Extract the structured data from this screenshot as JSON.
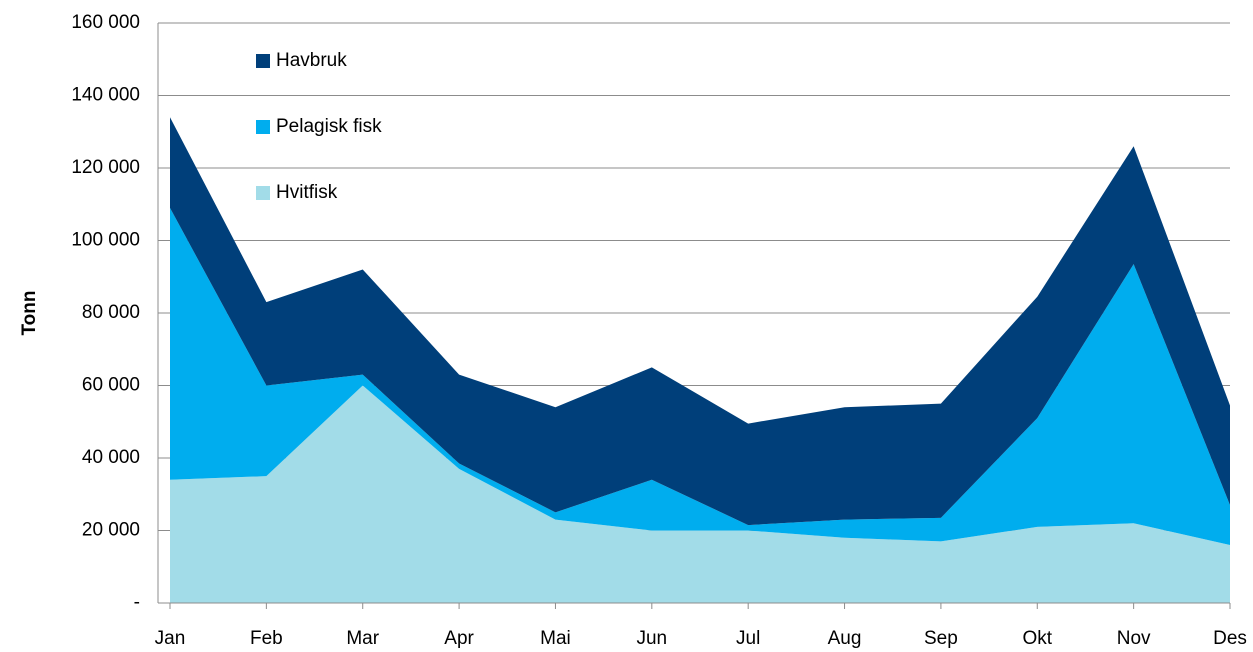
{
  "chart_data": {
    "type": "stacked_area",
    "y_label": "Tonn",
    "categories": [
      "Jan",
      "Feb",
      "Mar",
      "Apr",
      "Mai",
      "Jun",
      "Jul",
      "Aug",
      "Sep",
      "Okt",
      "Nov",
      "Des"
    ],
    "series": [
      {
        "name": "Hvitfisk",
        "color": "#a2dce8",
        "values": [
          34000,
          35000,
          60000,
          37000,
          23000,
          20000,
          20000,
          18000,
          17000,
          21000,
          22000,
          16000
        ]
      },
      {
        "name": "Pelagisk fisk",
        "color": "#00adee",
        "values": [
          75000,
          25000,
          3000,
          1500,
          2000,
          14000,
          1500,
          5000,
          6500,
          30000,
          71500,
          11000
        ]
      },
      {
        "name": "Havbruk",
        "color": "#003f7a",
        "values": [
          25000,
          23000,
          29000,
          24500,
          29000,
          31000,
          28000,
          31000,
          31500,
          33500,
          32500,
          27500
        ]
      }
    ],
    "ylim": [
      0,
      160000
    ],
    "yticks": [
      {
        "value": 0,
        "label": "-"
      },
      {
        "value": 20000,
        "label": "20 000"
      },
      {
        "value": 40000,
        "label": "40 000"
      },
      {
        "value": 60000,
        "label": "60 000"
      },
      {
        "value": 80000,
        "label": "80 000"
      },
      {
        "value": 100000,
        "label": "100 000"
      },
      {
        "value": 120000,
        "label": "120 000"
      },
      {
        "value": 140000,
        "label": "140 000"
      },
      {
        "value": 160000,
        "label": "160 000"
      }
    ],
    "grid": true
  }
}
